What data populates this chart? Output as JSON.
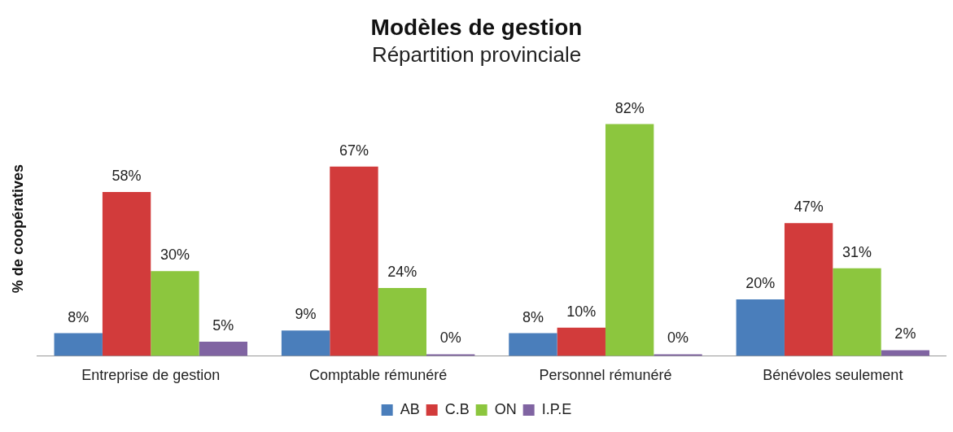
{
  "chart_data": {
    "type": "bar",
    "title": "Modèles de gestion",
    "subtitle": "Répartition provinciale",
    "ylabel": "% de coopératives",
    "categories": [
      "Entreprise de gestion",
      "Comptable rémunéré",
      "Personnel rémunéré",
      "Bénévoles seulement"
    ],
    "series": [
      {
        "name": "AB",
        "color": "#4a7ebb",
        "values": [
          8,
          9,
          8,
          20
        ],
        "value_labels": [
          "8%",
          "9%",
          "8%",
          "20%"
        ]
      },
      {
        "name": "C.B",
        "color": "#d23b3b",
        "values": [
          58,
          67,
          10,
          47
        ],
        "value_labels": [
          "58%",
          "67%",
          "10%",
          "47%"
        ]
      },
      {
        "name": "ON",
        "color": "#8cc63e",
        "values": [
          30,
          24,
          82,
          31
        ],
        "value_labels": [
          "30%",
          "24%",
          "82%",
          "31%"
        ]
      },
      {
        "name": "I.P.E",
        "color": "#8064a2",
        "values": [
          5,
          0,
          0,
          2
        ],
        "value_labels": [
          "5%",
          "0%",
          "0%",
          "2%"
        ]
      }
    ],
    "legend": "bottom",
    "grid": false,
    "tick_labels": "x"
  }
}
